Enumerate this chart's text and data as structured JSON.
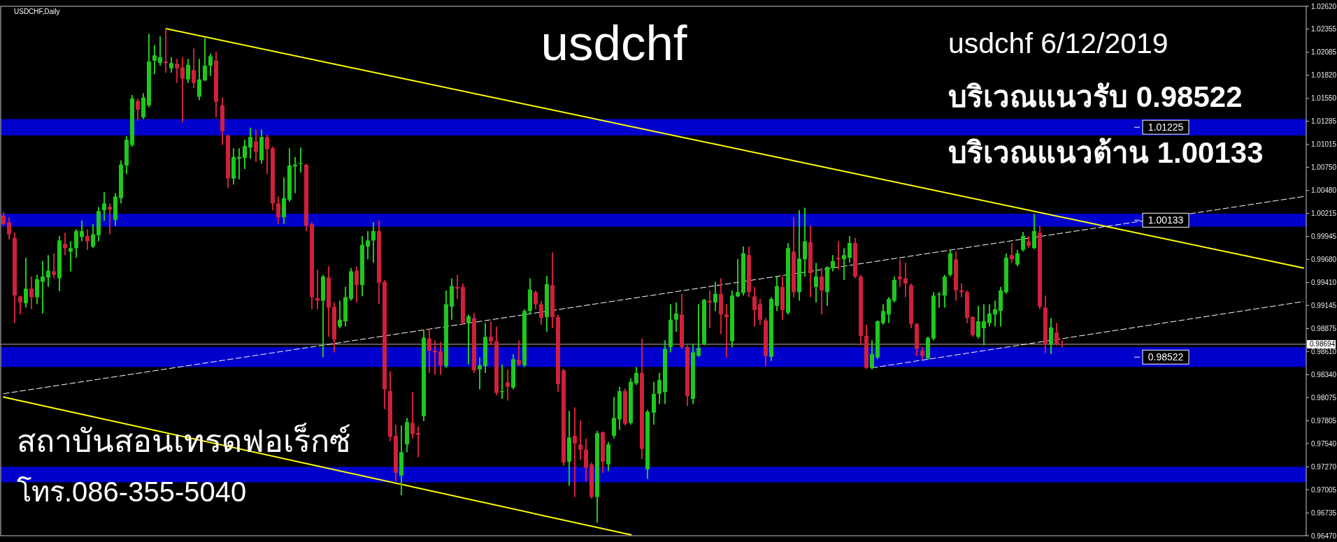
{
  "chart_data": {
    "type": "candlestick",
    "title": "usdchf",
    "subtitle": "usdchf 6/12/2019",
    "annotations": [
      "USDCHF,Daily",
      "บริเวณแนวรับ 0.98522",
      "บริเวณแนวต้าน 1.00133",
      "สถาบันสอนเทรดฟอเร็กซ์",
      "โทร.086-355-5040"
    ],
    "categories": [
      null,
      null,
      null,
      null,
      null,
      null,
      null,
      null,
      null,
      null,
      null,
      null,
      null,
      null,
      null,
      null,
      null,
      null,
      null,
      null,
      null,
      null,
      null,
      null,
      null,
      null,
      null,
      null,
      null,
      null,
      null,
      null,
      null,
      null,
      null,
      null,
      null,
      null,
      null,
      null,
      null,
      null,
      null,
      null,
      null,
      null,
      null,
      null,
      null,
      null,
      null,
      null,
      null,
      null,
      null,
      null,
      null,
      null,
      null,
      null,
      null,
      null,
      null,
      null,
      null,
      null,
      null,
      null,
      null,
      null,
      null,
      null,
      null,
      null,
      null,
      null,
      null,
      null,
      null,
      null,
      null,
      null,
      null,
      null,
      null,
      null,
      null,
      null,
      null,
      null,
      null,
      null,
      null,
      null,
      null,
      null,
      null,
      null,
      null,
      null,
      null,
      null,
      null,
      null,
      null,
      null,
      null,
      null,
      null,
      null,
      null,
      null,
      null,
      null,
      null,
      null,
      null,
      null,
      null,
      null,
      null,
      null,
      null,
      null,
      null,
      null,
      null,
      null,
      null,
      null,
      null,
      null,
      null,
      null,
      null,
      null,
      null,
      null,
      null,
      null,
      null,
      null,
      null,
      null,
      null,
      null,
      null,
      null,
      null,
      null,
      null,
      null,
      null,
      null,
      null,
      null,
      null,
      null,
      null,
      null,
      null,
      null,
      null,
      null,
      null,
      null,
      null,
      null,
      null,
      null,
      null,
      null,
      null,
      null,
      null,
      null,
      null,
      null,
      null,
      null,
      null,
      null,
      null,
      null,
      null,
      null,
      null,
      null,
      null,
      null,
      null,
      null,
      null,
      null,
      null,
      null,
      null,
      null,
      null,
      null,
      null,
      null,
      null,
      null,
      null,
      null,
      null,
      null,
      null,
      null,
      null,
      null,
      null,
      null,
      null,
      null,
      null,
      null,
      null,
      null,
      null,
      null,
      null,
      null,
      null,
      null,
      null,
      null,
      null,
      null,
      null,
      null,
      null
    ],
    "ohlc": [
      [
        1.0019,
        1.0023,
        1.0007,
        1.0009
      ],
      [
        1.0011,
        1.0017,
        0.9991,
        0.9997
      ],
      [
        0.9993,
        0.9999,
        0.9894,
        0.9926
      ],
      [
        0.9925,
        0.9926,
        0.9904,
        0.9918
      ],
      [
        0.9917,
        0.997,
        0.9912,
        0.9934
      ],
      [
        0.9934,
        0.9948,
        0.991,
        0.9924
      ],
      [
        0.9924,
        0.995,
        0.9916,
        0.9945
      ],
      [
        0.9942,
        0.9966,
        0.9905,
        0.9948
      ],
      [
        0.9947,
        0.9973,
        0.9936,
        0.9955
      ],
      [
        0.9954,
        0.9975,
        0.9946,
        0.995
      ],
      [
        0.9946,
        0.9995,
        0.9931,
        0.999
      ],
      [
        0.9986,
        0.9999,
        0.9973,
        0.9981
      ],
      [
        0.9977,
        0.9989,
        0.9954,
        0.9981
      ],
      [
        0.9981,
        1.0003,
        0.997,
        1.0001
      ],
      [
        0.9994,
        1.0013,
        0.9989,
        1.0001
      ],
      [
        0.9995,
        1.0003,
        0.9979,
        0.9989
      ],
      [
        0.9983,
        1.0009,
        0.9981,
        0.9997
      ],
      [
        0.9996,
        1.0029,
        0.9989,
        1.0024
      ],
      [
        1.0025,
        1.0046,
        1.0013,
        1.0033
      ],
      [
        1.0029,
        1.0033,
        0.9997,
        1.0026
      ],
      [
        1.0014,
        1.0045,
        1.0007,
        1.0041
      ],
      [
        1.0039,
        1.0083,
        1.0033,
        1.0078
      ],
      [
        1.0077,
        1.0111,
        1.0067,
        1.0107
      ],
      [
        1.0101,
        1.0159,
        1.0099,
        1.0155
      ],
      [
        1.0152,
        1.0155,
        1.0129,
        1.0142
      ],
      [
        1.0133,
        1.0161,
        1.0131,
        1.0156
      ],
      [
        1.0147,
        1.023,
        1.0145,
        1.0198
      ],
      [
        1.0199,
        1.0217,
        1.0183,
        1.0205
      ],
      [
        1.0196,
        1.0227,
        1.0193,
        1.0203
      ],
      [
        1.0198,
        1.0236,
        1.0185,
        1.0196
      ],
      [
        1.019,
        1.0203,
        1.0185,
        1.0196
      ],
      [
        1.0195,
        1.0201,
        1.0173,
        1.019
      ],
      [
        1.0191,
        1.0203,
        1.0127,
        1.0178
      ],
      [
        1.0177,
        1.0201,
        1.0173,
        1.0194
      ],
      [
        1.0188,
        1.0213,
        1.0167,
        1.0173
      ],
      [
        1.0157,
        1.0201,
        1.0153,
        1.0177
      ],
      [
        1.0176,
        1.0225,
        1.0175,
        1.0193
      ],
      [
        1.0193,
        1.0207,
        1.0181,
        1.0204
      ],
      [
        1.0199,
        1.0209,
        1.0133,
        1.0151
      ],
      [
        1.0147,
        1.0156,
        1.0101,
        1.0117
      ],
      [
        1.0112,
        1.0113,
        1.0051,
        1.0062
      ],
      [
        1.0062,
        1.0097,
        1.0055,
        1.0087
      ],
      [
        1.0085,
        1.0097,
        1.0061,
        1.0087
      ],
      [
        1.0086,
        1.0107,
        1.0073,
        1.01
      ],
      [
        1.0098,
        1.0121,
        1.0085,
        1.011
      ],
      [
        1.0105,
        1.0119,
        1.0081,
        1.0093
      ],
      [
        1.0083,
        1.0119,
        1.0079,
        1.011
      ],
      [
        1.011,
        1.0113,
        1.0067,
        1.0096
      ],
      [
        1.0097,
        1.0099,
        1.0025,
        1.0033
      ],
      [
        1.0033,
        1.0041,
        1.0009,
        1.0017
      ],
      [
        1.0017,
        1.0063,
        1.0009,
        1.0039
      ],
      [
        1.0037,
        1.0097,
        1.0035,
        1.0077
      ],
      [
        1.0076,
        1.0087,
        1.0045,
        1.0078
      ],
      [
        1.0079,
        1.0098,
        1.0069,
        1.008
      ],
      [
        1.0078,
        1.0079,
        1.0001,
        1.0007
      ],
      [
        1.0009,
        1.0011,
        0.991,
        0.9924
      ],
      [
        0.9923,
        0.9956,
        0.991,
        0.992
      ],
      [
        0.992,
        0.995,
        0.9854,
        0.9948
      ],
      [
        0.9947,
        0.996,
        0.9878,
        0.9912
      ],
      [
        0.9913,
        0.9918,
        0.986,
        0.9875
      ],
      [
        0.989,
        0.992,
        0.9888,
        0.9898
      ],
      [
        0.9896,
        0.9936,
        0.989,
        0.9924
      ],
      [
        0.9922,
        0.9958,
        0.992,
        0.9954
      ],
      [
        0.9955,
        0.996,
        0.9918,
        0.9938
      ],
      [
        0.9938,
        0.9995,
        0.9925,
        0.9985
      ],
      [
        0.9983,
        1.0001,
        0.9968,
        0.999
      ],
      [
        0.999,
        1.0011,
        0.9964,
        1.0001
      ],
      [
        1.0001,
        1.0013,
        0.9916,
        0.9941
      ],
      [
        0.9942,
        0.9944,
        0.9794,
        0.9817
      ],
      [
        0.9815,
        0.9838,
        0.9757,
        0.9762
      ],
      [
        0.9763,
        0.9776,
        0.971,
        0.972
      ],
      [
        0.9717,
        0.9775,
        0.9694,
        0.9744
      ],
      [
        0.9753,
        0.9784,
        0.9744,
        0.9779
      ],
      [
        0.9778,
        0.9814,
        0.976,
        0.9765
      ],
      [
        0.9766,
        0.9774,
        0.9738,
        0.9764
      ],
      [
        0.9786,
        0.9886,
        0.978,
        0.9877
      ],
      [
        0.9876,
        0.9888,
        0.9836,
        0.9862
      ],
      [
        0.9862,
        0.9874,
        0.9834,
        0.986
      ],
      [
        0.9861,
        0.9872,
        0.9834,
        0.9845
      ],
      [
        0.9844,
        0.9932,
        0.9842,
        0.9916
      ],
      [
        0.9913,
        0.9946,
        0.9898,
        0.9937
      ],
      [
        0.9936,
        0.995,
        0.9922,
        0.9934
      ],
      [
        0.9936,
        0.994,
        0.9892,
        0.9894
      ],
      [
        0.9894,
        0.9904,
        0.9846,
        0.9902
      ],
      [
        0.99,
        0.9906,
        0.9836,
        0.9839
      ],
      [
        0.984,
        0.9854,
        0.9817,
        0.9845
      ],
      [
        0.9844,
        0.9894,
        0.9836,
        0.9878
      ],
      [
        0.9878,
        0.9896,
        0.9868,
        0.9873
      ],
      [
        0.9873,
        0.989,
        0.981,
        0.9813
      ],
      [
        0.9814,
        0.9846,
        0.9806,
        0.9815
      ],
      [
        0.9825,
        0.984,
        0.9804,
        0.982
      ],
      [
        0.9819,
        0.9858,
        0.9817,
        0.9852
      ],
      [
        0.9851,
        0.9874,
        0.9844,
        0.9846
      ],
      [
        0.9845,
        0.991,
        0.9843,
        0.9908
      ],
      [
        0.9908,
        0.9946,
        0.9904,
        0.9933
      ],
      [
        0.993,
        0.9932,
        0.991,
        0.9916
      ],
      [
        0.9916,
        0.992,
        0.9892,
        0.99
      ],
      [
        0.9901,
        0.9949,
        0.9884,
        0.9939
      ],
      [
        0.9938,
        0.9976,
        0.9888,
        0.9901
      ],
      [
        0.9901,
        0.9904,
        0.9814,
        0.9823
      ],
      [
        0.9839,
        0.9841,
        0.9728,
        0.9732
      ],
      [
        0.9733,
        0.9792,
        0.9705,
        0.9761
      ],
      [
        0.9763,
        0.9796,
        0.9692,
        0.9754
      ],
      [
        0.9753,
        0.9781,
        0.9735,
        0.9747
      ],
      [
        0.9747,
        0.976,
        0.971,
        0.9726
      ],
      [
        0.973,
        0.9732,
        0.969,
        0.9692
      ],
      [
        0.9692,
        0.9769,
        0.9662,
        0.9766
      ],
      [
        0.9767,
        0.9768,
        0.972,
        0.9733
      ],
      [
        0.973,
        0.9756,
        0.9722,
        0.9753
      ],
      [
        0.9763,
        0.9808,
        0.976,
        0.9784
      ],
      [
        0.9782,
        0.982,
        0.977,
        0.9815
      ],
      [
        0.9815,
        0.9818,
        0.9775,
        0.9777
      ],
      [
        0.9778,
        0.983,
        0.9776,
        0.9826
      ],
      [
        0.9824,
        0.9843,
        0.9822,
        0.9836
      ],
      [
        0.9836,
        0.9876,
        0.9736,
        0.9748
      ],
      [
        0.9724,
        0.9793,
        0.9713,
        0.9791
      ],
      [
        0.979,
        0.9826,
        0.9776,
        0.9812
      ],
      [
        0.9812,
        0.9836,
        0.98,
        0.9828
      ],
      [
        0.9814,
        0.9874,
        0.98,
        0.9864
      ],
      [
        0.9866,
        0.9916,
        0.986,
        0.9898
      ],
      [
        0.9898,
        0.9918,
        0.9884,
        0.9905
      ],
      [
        0.9904,
        0.9928,
        0.9864,
        0.9866
      ],
      [
        0.9866,
        0.9868,
        0.9798,
        0.9809
      ],
      [
        0.9806,
        0.987,
        0.98,
        0.986
      ],
      [
        0.9856,
        0.9916,
        0.9855,
        0.9865
      ],
      [
        0.987,
        0.9922,
        0.9868,
        0.9921
      ],
      [
        0.992,
        0.9932,
        0.9888,
        0.9918
      ],
      [
        0.9918,
        0.9942,
        0.9908,
        0.9928
      ],
      [
        0.9928,
        0.9946,
        0.9881,
        0.9904
      ],
      [
        0.9904,
        0.9916,
        0.9854,
        0.9901
      ],
      [
        0.9873,
        0.9932,
        0.9866,
        0.9926
      ],
      [
        0.9925,
        0.9968,
        0.9924,
        0.993
      ],
      [
        0.9929,
        0.9983,
        0.9926,
        0.9975
      ],
      [
        0.9973,
        0.9983,
        0.9924,
        0.993
      ],
      [
        0.9925,
        0.9936,
        0.989,
        0.9909
      ],
      [
        0.9916,
        0.9922,
        0.9892,
        0.9898
      ],
      [
        0.9897,
        0.99,
        0.9844,
        0.9856
      ],
      [
        0.9855,
        0.9924,
        0.985,
        0.9922
      ],
      [
        0.9914,
        0.9948,
        0.9908,
        0.9937
      ],
      [
        0.9936,
        0.9948,
        0.9898,
        0.9909
      ],
      [
        0.9906,
        0.9987,
        0.9904,
        0.9981
      ],
      [
        0.9977,
        1.0017,
        0.9924,
        0.993
      ],
      [
        0.993,
        1.0025,
        0.992,
        0.9969
      ],
      [
        0.9968,
        1.0028,
        0.9948,
        0.9989
      ],
      [
        0.9988,
        1.0007,
        0.9924,
        0.9952
      ],
      [
        0.9936,
        0.9964,
        0.9918,
        0.9948
      ],
      [
        0.9948,
        0.9958,
        0.9904,
        0.9932
      ],
      [
        0.993,
        0.996,
        0.9914,
        0.9959
      ],
      [
        0.9958,
        0.9973,
        0.9954,
        0.9966
      ],
      [
        0.997,
        0.9989,
        0.9956,
        0.9968
      ],
      [
        0.9968,
        0.9981,
        0.9944,
        0.9973
      ],
      [
        0.997,
        0.9995,
        0.9964,
        0.9987
      ],
      [
        0.9987,
        0.9993,
        0.9946,
        0.9948
      ],
      [
        0.9948,
        0.995,
        0.9868,
        0.9879
      ],
      [
        0.9879,
        0.9892,
        0.9841,
        0.9842
      ],
      [
        0.9842,
        0.9874,
        0.984,
        0.9858
      ],
      [
        0.9854,
        0.9897,
        0.9852,
        0.9896
      ],
      [
        0.9894,
        0.9916,
        0.9892,
        0.9908
      ],
      [
        0.9904,
        0.9924,
        0.9894,
        0.9922
      ],
      [
        0.992,
        0.9948,
        0.9918,
        0.9944
      ],
      [
        0.9948,
        0.9968,
        0.9936,
        0.9945
      ],
      [
        0.9946,
        0.9964,
        0.9924,
        0.994
      ],
      [
        0.9938,
        0.994,
        0.9888,
        0.9893
      ],
      [
        0.9893,
        0.9894,
        0.9856,
        0.9864
      ],
      [
        0.9862,
        0.9866,
        0.9852,
        0.9856
      ],
      [
        0.9853,
        0.9878,
        0.9851,
        0.9877
      ],
      [
        0.9876,
        0.993,
        0.9874,
        0.9926
      ],
      [
        0.9927,
        0.993,
        0.9912,
        0.9928
      ],
      [
        0.9926,
        0.995,
        0.9912,
        0.9948
      ],
      [
        0.995,
        0.9979,
        0.9948,
        0.9975
      ],
      [
        0.9968,
        0.9977,
        0.992,
        0.9932
      ],
      [
        0.9932,
        0.994,
        0.9924,
        0.993
      ],
      [
        0.993,
        0.9932,
        0.9894,
        0.99
      ],
      [
        0.9901,
        0.9902,
        0.9878,
        0.988
      ],
      [
        0.9878,
        0.9914,
        0.9876,
        0.9896
      ],
      [
        0.9888,
        0.9916,
        0.9868,
        0.9896
      ],
      [
        0.9894,
        0.9916,
        0.989,
        0.9905
      ],
      [
        0.9904,
        0.992,
        0.989,
        0.991
      ],
      [
        0.9908,
        0.9936,
        0.989,
        0.9932
      ],
      [
        0.993,
        0.9975,
        0.9928,
        0.997
      ],
      [
        0.9973,
        0.9987,
        0.9964,
        0.9968
      ],
      [
        0.9962,
        0.9979,
        0.996,
        0.9975
      ],
      [
        0.9979,
        1.0,
        0.9977,
        0.9995
      ],
      [
        0.9989,
        0.9995,
        0.9981,
        0.9984
      ],
      [
        0.9981,
        1.0021,
        0.998,
        1.0001
      ],
      [
        0.9999,
        1.0007,
        0.991,
        0.9913
      ],
      [
        0.9912,
        0.9926,
        0.9859,
        0.9869
      ],
      [
        0.9869,
        0.99,
        0.9858,
        0.9889
      ],
      [
        0.9883,
        0.9894,
        0.9868,
        0.987
      ],
      [
        0.987,
        0.9874,
        0.9866,
        0.98694
      ],
      null,
      null,
      null,
      null,
      null,
      null,
      null,
      null,
      null,
      null,
      null,
      null,
      null,
      null,
      null,
      null,
      null,
      null,
      null,
      null,
      null,
      null,
      null,
      null,
      null,
      null,
      null,
      null,
      null,
      null,
      null,
      null,
      null,
      null,
      null,
      null,
      null,
      null,
      null,
      null,
      null,
      null,
      null
    ],
    "colors": [
      "#d0203a",
      "#d0203a",
      "#d0203a",
      "#d0203a",
      "#1ec81e",
      "#d0203a",
      "#1ec81e",
      "#1ec81e",
      "#1ec81e",
      "#d0203a",
      "#1ec81e",
      "#d0203a",
      "#1ec81e",
      "#1ec81e",
      "#1ec81e",
      "#d0203a",
      "#1ec81e",
      "#1ec81e",
      "#1ec81e",
      "#d0203a",
      "#1ec81e",
      "#1ec81e",
      "#1ec81e",
      "#1ec81e",
      "#d0203a",
      "#1ec81e",
      "#1ec81e",
      "#1ec81e",
      "#1ec81e",
      "#d0203a",
      "#1ec81e",
      "#d0203a",
      "#d0203a",
      "#1ec81e",
      "#d0203a",
      "#1ec81e",
      "#1ec81e",
      "#1ec81e",
      "#d0203a",
      "#d0203a",
      "#d0203a",
      "#1ec81e",
      "#1ec81e",
      "#1ec81e",
      "#1ec81e",
      "#d0203a",
      "#1ec81e",
      "#d0203a",
      "#d0203a",
      "#d0203a",
      "#1ec81e",
      "#1ec81e",
      "#1ec81e",
      "#1ec81e",
      "#d0203a",
      "#d0203a",
      "#d0203a",
      "#1ec81e",
      "#d0203a",
      "#d0203a",
      "#1ec81e",
      "#1ec81e",
      "#1ec81e",
      "#d0203a",
      "#1ec81e",
      "#1ec81e",
      "#1ec81e",
      "#d0203a",
      "#d0203a",
      "#d0203a",
      "#d0203a",
      "#1ec81e",
      "#1ec81e",
      "#d0203a",
      "#d0203a",
      "#1ec81e",
      "#d0203a",
      "#d0203a",
      "#d0203a",
      "#1ec81e",
      "#1ec81e",
      "#d0203a",
      "#d0203a",
      "#1ec81e",
      "#d0203a",
      "#1ec81e",
      "#1ec81e",
      "#d0203a",
      "#d0203a",
      "#1ec81e",
      "#d0203a",
      "#1ec81e",
      "#d0203a",
      "#1ec81e",
      "#1ec81e",
      "#d0203a",
      "#d0203a",
      "#1ec81e",
      "#d0203a",
      "#d0203a",
      "#d0203a",
      "#1ec81e",
      "#d0203a",
      "#d0203a",
      "#d0203a",
      "#d0203a",
      "#1ec81e",
      "#d0203a",
      "#1ec81e",
      "#1ec81e",
      "#1ec81e",
      "#d0203a",
      "#1ec81e",
      "#1ec81e",
      "#d0203a",
      "#1ec81e",
      "#1ec81e",
      "#1ec81e",
      "#1ec81e",
      "#1ec81e",
      "#1ec81e",
      "#d0203a",
      "#d0203a",
      "#1ec81e",
      "#1ec81e",
      "#1ec81e",
      "#d0203a",
      "#1ec81e",
      "#d0203a",
      "#d0203a",
      "#1ec81e",
      "#1ec81e",
      "#1ec81e",
      "#d0203a",
      "#d0203a",
      "#d0203a",
      "#d0203a",
      "#1ec81e",
      "#1ec81e",
      "#d0203a",
      "#1ec81e",
      "#d0203a",
      "#1ec81e",
      "#1ec81e",
      "#d0203a",
      "#1ec81e",
      "#d0203a",
      "#1ec81e",
      "#1ec81e",
      "#d0203a",
      "#1ec81e",
      "#1ec81e",
      "#d0203a",
      "#d0203a",
      "#d0203a",
      "#1ec81e",
      "#1ec81e",
      "#1ec81e",
      "#1ec81e",
      "#1ec81e",
      "#d0203a",
      "#d0203a",
      "#d0203a",
      "#d0203a",
      "#d0203a",
      "#1ec81e",
      "#1ec81e",
      "#1ec81e",
      "#1ec81e",
      "#1ec81e",
      "#d0203a",
      "#d0203a",
      "#d0203a",
      "#d0203a",
      "#1ec81e",
      "#1ec81e",
      "#1ec81e",
      "#1ec81e",
      "#1ec81e",
      "#1ec81e",
      "#d0203a",
      "#1ec81e",
      "#1ec81e",
      "#d0203a",
      "#1ec81e",
      "#d0203a",
      "#d0203a",
      "#1ec81e",
      "#d0203a",
      "#d0203a",
      null,
      null,
      null,
      null,
      null,
      null,
      null,
      null,
      null,
      null,
      null,
      null,
      null,
      null,
      null,
      null,
      null,
      null,
      null,
      null,
      null,
      null,
      null,
      null,
      null,
      null,
      null,
      null,
      null,
      null,
      null,
      null,
      null,
      null,
      null,
      null,
      null,
      null,
      null,
      null,
      null,
      null,
      null
    ],
    "series": [
      {
        "type": "line",
        "color": "#ffff00",
        "values": [
          null,
          null,
          null,
          null,
          null,
          null,
          null,
          null,
          null,
          null,
          null,
          null,
          null,
          null,
          null,
          null,
          null,
          null,
          null,
          null,
          null,
          null,
          null,
          null,
          null,
          null,
          null,
          null,
          null,
          1.0236,
          null,
          null,
          null,
          null,
          null,
          null,
          null,
          null,
          null,
          null,
          null,
          null,
          null,
          null,
          null,
          null,
          null,
          null,
          null,
          null,
          null,
          null,
          null,
          null,
          null,
          null,
          null,
          null,
          null,
          null,
          null,
          null,
          null,
          null,
          null,
          null,
          null,
          null,
          null,
          null,
          null,
          null,
          null,
          null,
          null,
          null,
          null,
          null,
          null,
          null,
          null,
          null,
          null,
          null,
          null,
          null,
          null,
          null,
          null,
          null,
          null,
          null,
          null,
          null,
          null,
          null,
          null,
          null,
          null,
          null,
          null,
          null,
          null,
          null,
          null,
          null,
          null,
          null,
          null,
          null,
          null,
          null,
          null,
          null,
          null,
          null,
          null,
          null,
          null,
          null,
          null,
          null,
          null,
          null,
          null,
          null,
          null,
          null,
          null,
          null,
          null,
          null,
          null,
          null,
          null,
          null,
          null,
          null,
          null,
          null,
          null,
          null,
          null,
          null,
          null,
          null,
          null,
          null,
          null,
          null,
          null,
          null,
          null,
          null,
          null,
          null,
          null,
          null,
          null,
          null,
          null,
          null,
          null,
          null,
          null,
          null,
          null,
          null,
          null,
          null,
          null,
          null,
          null,
          null,
          null,
          null,
          null,
          null,
          null,
          null,
          null,
          null,
          null,
          null,
          null,
          null,
          null,
          null,
          null,
          null,
          null,
          null,
          null,
          null,
          null,
          null,
          null,
          null,
          null,
          null,
          null,
          null,
          null,
          null,
          null,
          null,
          null,
          null,
          null,
          null,
          null,
          null,
          null,
          null,
          null,
          null,
          null,
          null,
          null,
          null,
          null,
          null,
          null,
          null,
          null,
          null,
          null,
          null,
          null,
          null,
          null,
          null,
          0.9958
        ]
      },
      {
        "type": "line",
        "color": "#ffff00",
        "values": [
          0.9808,
          null,
          null,
          null,
          null,
          null,
          null,
          null,
          null,
          null,
          null,
          null,
          null,
          null,
          null,
          null,
          null,
          null,
          null,
          null,
          null,
          null,
          null,
          null,
          null,
          null,
          null,
          null,
          null,
          null,
          null,
          null,
          null,
          null,
          null,
          null,
          null,
          null,
          null,
          null,
          null,
          null,
          null,
          null,
          null,
          null,
          null,
          null,
          null,
          null,
          null,
          null,
          null,
          null,
          null,
          null,
          null,
          null,
          null,
          null,
          null,
          null,
          null,
          null,
          null,
          null,
          null,
          null,
          null,
          null,
          null,
          null,
          null,
          null,
          null,
          null,
          null,
          null,
          null,
          null,
          null,
          null,
          null,
          null,
          null,
          null,
          null,
          null,
          null,
          null,
          null,
          null,
          null,
          null,
          null,
          null,
          null,
          null,
          null,
          null,
          null,
          null,
          null,
          null,
          null,
          null,
          null,
          null,
          null,
          null,
          null,
          null,
          0.9648,
          null,
          null,
          null,
          null,
          null,
          null,
          null,
          null,
          null,
          null,
          null,
          null,
          null,
          null,
          null,
          null,
          null,
          null,
          null,
          null,
          null,
          null,
          null,
          null,
          null,
          null,
          null,
          null,
          null,
          null,
          null,
          null,
          null,
          null,
          null,
          null,
          null,
          null,
          null,
          null,
          null,
          null,
          null,
          null,
          null,
          null,
          null,
          null,
          null,
          null,
          null,
          null,
          null,
          null,
          null,
          null,
          null,
          null,
          null,
          null,
          null,
          null,
          null,
          null,
          null,
          null,
          null,
          null,
          null,
          null,
          null,
          null,
          null,
          null,
          null,
          null,
          null,
          null,
          null,
          null,
          null,
          null,
          null,
          null,
          null,
          null,
          null,
          null,
          null,
          null,
          null,
          null,
          null,
          null,
          null,
          null,
          null,
          null,
          null,
          null,
          null,
          null,
          null,
          null,
          null,
          null,
          null,
          null,
          null,
          null,
          null,
          null,
          null,
          null,
          null,
          null,
          null,
          null,
          null,
          null
        ]
      },
      {
        "type": "line",
        "color": "#ffffff",
        "line_style": "dashed",
        "values": [
          0.9812,
          null,
          null,
          null,
          null,
          null,
          null,
          null,
          null,
          null,
          null,
          null,
          null,
          null,
          null,
          null,
          null,
          null,
          null,
          null,
          null,
          null,
          null,
          null,
          null,
          null,
          null,
          null,
          null,
          null,
          null,
          null,
          null,
          null,
          null,
          null,
          null,
          null,
          null,
          null,
          null,
          null,
          null,
          null,
          null,
          null,
          null,
          null,
          null,
          null,
          null,
          null,
          null,
          null,
          null,
          null,
          null,
          null,
          null,
          null,
          null,
          null,
          null,
          null,
          null,
          null,
          null,
          null,
          null,
          null,
          null,
          null,
          null,
          null,
          null,
          null,
          null,
          null,
          null,
          null,
          null,
          null,
          null,
          null,
          null,
          null,
          null,
          null,
          null,
          null,
          null,
          null,
          null,
          null,
          null,
          null,
          null,
          null,
          null,
          null,
          null,
          null,
          null,
          null,
          null,
          null,
          null,
          null,
          null,
          null,
          null,
          null,
          null,
          null,
          null,
          null,
          null,
          null,
          null,
          null,
          null,
          null,
          null,
          null,
          null,
          null,
          null,
          null,
          null,
          null,
          null,
          null,
          null,
          null,
          null,
          null,
          null,
          null,
          null,
          null,
          null,
          null,
          null,
          null,
          null,
          null,
          null,
          null,
          null,
          null,
          null,
          null,
          null,
          null,
          null,
          null,
          null,
          null,
          null,
          null,
          null,
          null,
          null,
          null,
          null,
          null,
          null,
          null,
          null,
          null,
          null,
          null,
          null,
          null,
          null,
          null,
          null,
          null,
          null,
          null,
          null,
          null,
          null,
          null,
          null,
          null,
          null,
          null,
          null,
          null,
          null,
          null,
          null,
          null,
          null,
          null,
          null,
          null,
          null,
          null,
          null,
          null,
          null,
          null,
          null,
          null,
          null,
          null,
          null,
          null,
          null,
          null,
          null,
          null,
          null,
          null,
          null,
          null,
          null,
          null,
          null,
          null,
          null,
          null,
          null,
          null,
          null,
          null,
          null,
          null,
          null,
          null,
          1.0041
        ]
      },
      {
        "type": "line",
        "color": "#ffffff",
        "line_style": "dashed",
        "values": [
          null,
          null,
          null,
          null,
          null,
          null,
          null,
          null,
          null,
          null,
          null,
          null,
          null,
          null,
          null,
          null,
          null,
          null,
          null,
          null,
          null,
          null,
          null,
          null,
          null,
          null,
          null,
          null,
          null,
          null,
          null,
          null,
          null,
          null,
          null,
          null,
          null,
          null,
          null,
          null,
          null,
          null,
          null,
          null,
          null,
          null,
          null,
          null,
          null,
          null,
          null,
          null,
          null,
          null,
          null,
          null,
          null,
          null,
          null,
          null,
          null,
          null,
          null,
          null,
          null,
          null,
          null,
          null,
          null,
          null,
          null,
          null,
          null,
          null,
          null,
          null,
          null,
          null,
          null,
          null,
          null,
          null,
          null,
          null,
          null,
          null,
          null,
          null,
          null,
          null,
          null,
          null,
          null,
          null,
          null,
          null,
          null,
          null,
          null,
          null,
          null,
          null,
          null,
          null,
          null,
          null,
          null,
          null,
          null,
          null,
          null,
          null,
          null,
          null,
          null,
          null,
          null,
          null,
          null,
          null,
          null,
          null,
          null,
          null,
          null,
          null,
          null,
          null,
          null,
          null,
          null,
          null,
          null,
          null,
          null,
          null,
          null,
          null,
          null,
          null,
          null,
          null,
          null,
          null,
          null,
          null,
          null,
          null,
          null,
          null,
          null,
          null,
          null,
          null,
          null,
          0.9842,
          null,
          null,
          null,
          null,
          null,
          null,
          null,
          null,
          null,
          null,
          null,
          null,
          null,
          null,
          null,
          null,
          null,
          null,
          null,
          null,
          null,
          null,
          null,
          null,
          null,
          null,
          null,
          null,
          null,
          null,
          null,
          null,
          null,
          null,
          null,
          null,
          null,
          null,
          null,
          null,
          null,
          null,
          null,
          null,
          null,
          null,
          null,
          null,
          null,
          null,
          null,
          null,
          null,
          null,
          null,
          null,
          null,
          null,
          null,
          null,
          null,
          null,
          null,
          null,
          null,
          null,
          null,
          null,
          null,
          null,
          null,
          null,
          null,
          null,
          null,
          null,
          0.9919
        ]
      }
    ],
    "ylim": [
      0.9647,
      1.0262
    ],
    "yticks": [
      {
        "value": 1.0262,
        "label": "1.02620"
      },
      1.02355,
      1.02085,
      {
        "value": 1.0182,
        "label": "1.01820"
      },
      {
        "value": 1.0155,
        "label": "1.01550"
      },
      1.01285,
      1.01015,
      {
        "value": 1.0075,
        "label": "1.00750"
      },
      {
        "value": 1.0048,
        "label": "1.00480"
      },
      1.00215,
      0.99945,
      {
        "value": 0.9968,
        "label": "0.99680"
      },
      {
        "value": 0.9941,
        "label": "0.99410"
      },
      0.99145,
      0.98875,
      {
        "value": 0.9861,
        "label": "0.98610"
      },
      {
        "value": 0.9834,
        "label": "0.98340"
      },
      0.98075,
      0.97805,
      {
        "value": 0.9754,
        "label": "0.97540"
      },
      {
        "value": 0.9727,
        "label": "0.97270"
      },
      0.97005,
      0.96735,
      {
        "value": 0.9647,
        "label": "0.96470"
      }
    ],
    "tick_labels": "y",
    "ref_lines": [
      {
        "axis": "y",
        "value": 0.98694,
        "label": "0.98694",
        "color": "#b0b0b0"
      }
    ],
    "bands": [
      {
        "axis": "y",
        "from": 1.0112,
        "to": 1.0131,
        "label": "1.01225",
        "color": "#0000cd"
      },
      {
        "axis": "y",
        "from": 1.0006,
        "to": 1.0021,
        "label": "1.00133",
        "color": "#0000cd"
      },
      {
        "axis": "y",
        "from": 0.9843,
        "to": 0.9866,
        "label": "0.98522",
        "color": "#0000cd"
      },
      {
        "axis": "y",
        "from": 0.9709,
        "to": 0.9727,
        "color": "#0000cd"
      }
    ]
  }
}
